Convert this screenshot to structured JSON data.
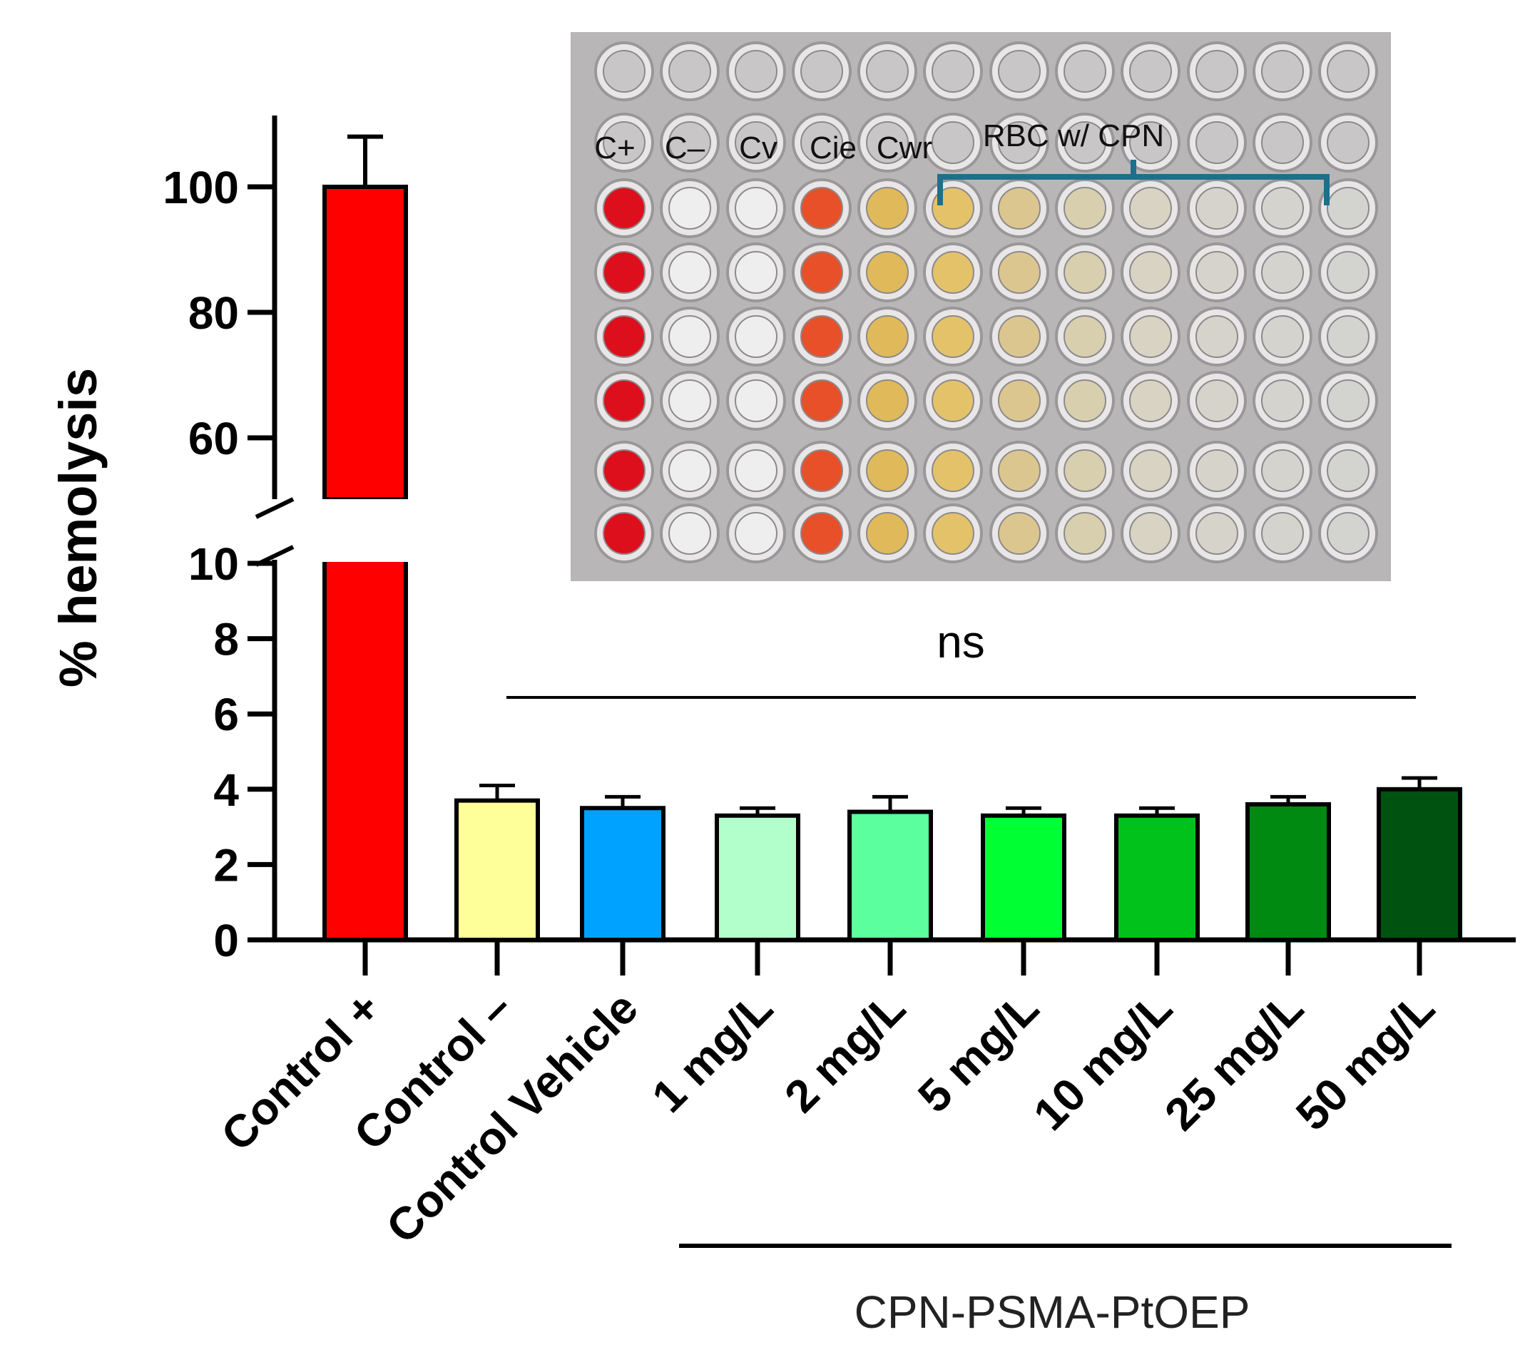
{
  "chart_data": {
    "type": "bar",
    "ylabel": "% hemolysis",
    "y_axis_break": [
      10,
      55
    ],
    "ylim": [
      0,
      110
    ],
    "lower_ticks": [
      0,
      2,
      4,
      6,
      8,
      10
    ],
    "upper_ticks": [
      60,
      80,
      100
    ],
    "categories": [
      "Control +",
      "Control –",
      "Control Vehicle",
      "1 mg/L",
      "2 mg/L",
      "5 mg/L",
      "10 mg/L",
      "25 mg/L",
      "50 mg/L"
    ],
    "values": [
      100,
      3.7,
      3.5,
      3.3,
      3.4,
      3.3,
      3.3,
      3.6,
      4.0
    ],
    "errors": [
      8,
      0.4,
      0.3,
      0.2,
      0.4,
      0.2,
      0.2,
      0.2,
      0.3
    ],
    "colors": [
      "#ff0000",
      "#ffff99",
      "#00a2ff",
      "#b3ffcc",
      "#5cff9d",
      "#00ff33",
      "#00c21a",
      "#008a12",
      "#005210"
    ],
    "significance": "ns",
    "group_label": "CPN-PSMA-PtOEP",
    "inset": {
      "column_labels": [
        "C+",
        "C–",
        "Cv",
        "Cie",
        "Cwr"
      ],
      "bracket_label": "RBC w/ CPN",
      "well_colors": [
        "#dd0f1c",
        "#eeeeee",
        "#eeeeee",
        "#e8502a",
        "#e0b95a",
        "#e4c26a",
        "#dcc690",
        "#d8cfae",
        "#d8d3c2",
        "#d6d4ca",
        "#d4d3cd",
        "#d3d3d0"
      ]
    }
  }
}
